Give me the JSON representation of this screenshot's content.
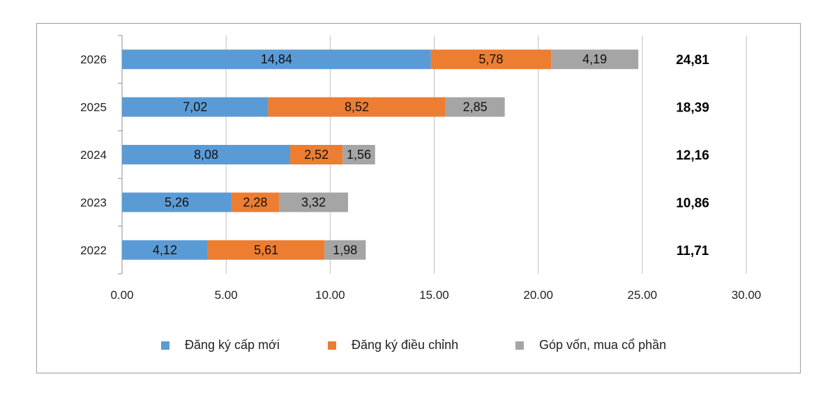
{
  "chart_data": {
    "type": "bar",
    "orientation": "horizontal",
    "stacked": true,
    "categories": [
      "2026",
      "2025",
      "2024",
      "2023",
      "2022"
    ],
    "series": [
      {
        "name": "Đăng ký cấp mới",
        "color": "#5b9bd5",
        "values": [
          14.84,
          7.02,
          8.08,
          5.26,
          4.12
        ],
        "labels": [
          "14,84",
          "7,02",
          "8,08",
          "5,26",
          "4,12"
        ]
      },
      {
        "name": "Đăng ký điều chỉnh",
        "color": "#ed7d31",
        "values": [
          5.78,
          8.52,
          2.52,
          2.28,
          5.61
        ],
        "labels": [
          "5,78",
          "8,52",
          "2,52",
          "2,28",
          "5,61"
        ]
      },
      {
        "name": "Góp vốn, mua cổ phần",
        "color": "#a5a5a5",
        "values": [
          4.19,
          2.85,
          1.56,
          3.32,
          1.98
        ],
        "labels": [
          "4,19",
          "2,85",
          "1,56",
          "3,32",
          "1,98"
        ]
      }
    ],
    "totals": [
      24.81,
      18.39,
      12.16,
      10.86,
      11.71
    ],
    "total_labels": [
      "24,81",
      "18,39",
      "12,16",
      "10,86",
      "11,71"
    ],
    "xlim": [
      0,
      30
    ],
    "x_ticks": [
      0,
      5,
      10,
      15,
      20,
      25,
      30
    ],
    "x_tick_labels": [
      "0.00",
      "5.00",
      "10.00",
      "15.00",
      "20.00",
      "25.00",
      "30.00"
    ],
    "grid": "vertical",
    "legend_position": "bottom",
    "title": "",
    "xlabel": "",
    "ylabel": ""
  }
}
